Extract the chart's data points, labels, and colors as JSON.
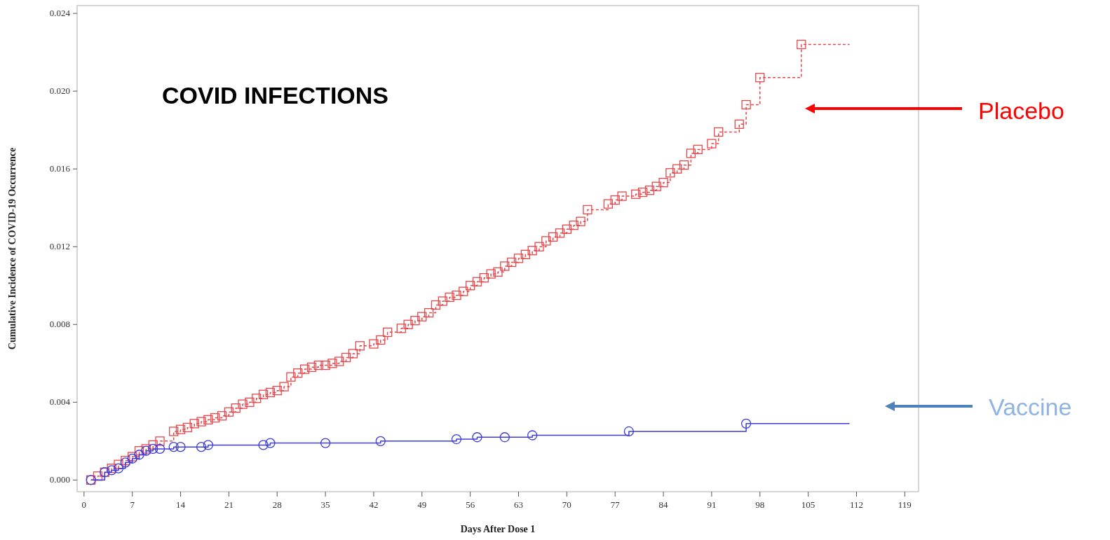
{
  "chart_data": {
    "type": "step",
    "title": "COVID INFECTIONS",
    "xlabel": "Days After Dose 1",
    "ylabel": "Cumulative Incidence of COVID-19 Occurrence",
    "xlim": [
      -1,
      121
    ],
    "xticks": [
      0,
      7,
      14,
      21,
      28,
      35,
      42,
      49,
      56,
      63,
      70,
      77,
      84,
      91,
      98,
      105,
      112,
      119
    ],
    "ylim": [
      -0.0006,
      0.0244
    ],
    "yticks": [
      {
        "value": 0,
        "label": "0.000"
      },
      {
        "value": 0.004,
        "label": "0.004"
      },
      {
        "value": 0.008,
        "label": "0.008"
      },
      {
        "value": 0.012,
        "label": "0.012"
      },
      {
        "value": 0.016,
        "label": "0.016"
      },
      {
        "value": 0.02,
        "label": "0.020"
      },
      {
        "value": 0.024,
        "label": "0.024"
      }
    ],
    "grid": false,
    "legend": "right",
    "series": [
      {
        "name": "Placebo",
        "color": "#e8464a",
        "marker": "square",
        "line_style": "dashed",
        "x": [
          1,
          2,
          3,
          4,
          5,
          6,
          7,
          8,
          9,
          10,
          11,
          13,
          14,
          15,
          16,
          17,
          18,
          19,
          20,
          21,
          22,
          23,
          24,
          25,
          26,
          27,
          28,
          29,
          30,
          31,
          32,
          33,
          34,
          35,
          36,
          37,
          38,
          39,
          40,
          42,
          43,
          44,
          46,
          47,
          48,
          49,
          50,
          51,
          52,
          53,
          54,
          55,
          56,
          57,
          58,
          59,
          60,
          61,
          62,
          63,
          64,
          65,
          66,
          67,
          68,
          69,
          70,
          71,
          72,
          73,
          76,
          77,
          78,
          80,
          81,
          82,
          83,
          84,
          85,
          86,
          87,
          88,
          89,
          91,
          92,
          95,
          96,
          98,
          104,
          111
        ],
        "values": [
          0,
          0.0002,
          0.0004,
          0.0006,
          0.0008,
          0.001,
          0.0012,
          0.0015,
          0.0016,
          0.0018,
          0.002,
          0.0025,
          0.0026,
          0.0027,
          0.0029,
          0.003,
          0.0031,
          0.0032,
          0.0033,
          0.0035,
          0.0037,
          0.0039,
          0.004,
          0.0042,
          0.0044,
          0.0045,
          0.0046,
          0.0048,
          0.0053,
          0.0055,
          0.0057,
          0.0058,
          0.0059,
          0.0059,
          0.006,
          0.0061,
          0.0063,
          0.0065,
          0.0069,
          0.007,
          0.0072,
          0.0076,
          0.0078,
          0.008,
          0.0082,
          0.0084,
          0.0086,
          0.009,
          0.0092,
          0.0094,
          0.0095,
          0.0097,
          0.01,
          0.0102,
          0.0104,
          0.0106,
          0.0107,
          0.011,
          0.0112,
          0.0114,
          0.0116,
          0.0118,
          0.012,
          0.0123,
          0.0125,
          0.0127,
          0.0129,
          0.0131,
          0.0133,
          0.0139,
          0.0142,
          0.0144,
          0.0146,
          0.0147,
          0.0148,
          0.0149,
          0.0151,
          0.0153,
          0.0158,
          0.016,
          0.0162,
          0.0168,
          0.017,
          0.0173,
          0.0179,
          0.0183,
          0.0193,
          0.0207,
          0.0224,
          0.0224
        ]
      },
      {
        "name": "Vaccine",
        "color": "#3c3cdc",
        "marker": "circle",
        "line_style": "solid",
        "x": [
          1,
          3,
          4,
          5,
          6,
          7,
          8,
          9,
          10,
          11,
          13,
          14,
          17,
          18,
          26,
          27,
          35,
          43,
          54,
          57,
          61,
          65,
          79,
          96,
          111
        ],
        "values": [
          0,
          0.0004,
          0.0005,
          0.0006,
          0.0009,
          0.0011,
          0.0013,
          0.0015,
          0.0016,
          0.0016,
          0.0017,
          0.0017,
          0.0017,
          0.0018,
          0.0018,
          0.0019,
          0.0019,
          0.002,
          0.0021,
          0.0022,
          0.0022,
          0.0023,
          0.0025,
          0.0029,
          0.0029
        ]
      }
    ]
  }
}
